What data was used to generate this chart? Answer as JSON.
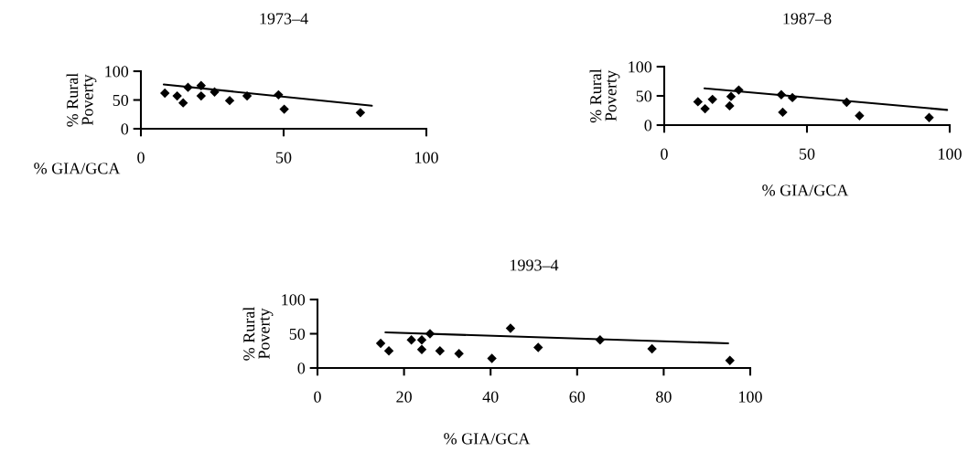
{
  "chart_data": [
    {
      "type": "scatter",
      "title": "1973–4",
      "xlabel": "% GIA/GCA",
      "ylabel": "% Rural\nPoverty",
      "xlim": [
        0,
        100
      ],
      "ylim": [
        0,
        100
      ],
      "xticks": [
        0,
        50,
        100
      ],
      "yticks": [
        0,
        50,
        100
      ],
      "grid": false,
      "legend": false,
      "series": [
        {
          "type": "scatter",
          "color": "#000000",
          "marker": "diamond",
          "x": [
            8.4,
            12.7,
            14.8,
            16.5,
            21.1,
            21.1,
            25.8,
            31.1,
            37.2,
            48.2,
            50.2,
            76.9
          ],
          "values": [
            62,
            57,
            45,
            72,
            75,
            57,
            64,
            49,
            57,
            59,
            34,
            28
          ]
        },
        {
          "type": "line",
          "color": "#000000",
          "marker": "none",
          "x": [
            8,
            80.9
          ],
          "values": [
            77,
            40
          ]
        }
      ]
    },
    {
      "type": "scatter",
      "title": "1987–8",
      "xlabel": "% GIA/GCA",
      "ylabel": "% Rural\nPoverty",
      "xlim": [
        0,
        100
      ],
      "ylim": [
        0,
        100
      ],
      "xticks": [
        0,
        50,
        100
      ],
      "yticks": [
        0,
        50,
        100
      ],
      "grid": false,
      "legend": false,
      "series": [
        {
          "type": "scatter",
          "color": "#000000",
          "marker": "diamond",
          "x": [
            11.8,
            14.3,
            16.9,
            22.9,
            23.4,
            26.1,
            41,
            41.5,
            44.9,
            63.9,
            68.4,
            92.8
          ],
          "values": [
            40,
            28,
            44,
            33,
            49,
            60,
            52,
            22,
            47,
            39,
            16,
            13
          ]
        },
        {
          "type": "line",
          "color": "#000000",
          "marker": "none",
          "x": [
            14.1,
            99.1
          ],
          "values": [
            63,
            26
          ]
        }
      ]
    },
    {
      "type": "scatter",
      "title": "1993–4",
      "xlabel": "% GIA/GCA",
      "ylabel": "% Rural\nPoverty",
      "xlim": [
        0,
        100
      ],
      "ylim": [
        0,
        100
      ],
      "xticks": [
        0,
        20,
        40,
        60,
        80,
        100
      ],
      "yticks": [
        0,
        50,
        100
      ],
      "grid": false,
      "legend": false,
      "series": [
        {
          "type": "scatter",
          "color": "#000000",
          "marker": "diamond",
          "x": [
            14.6,
            16.5,
            21.7,
            24.1,
            24.1,
            26,
            28.3,
            32.7,
            40.3,
            44.6,
            51,
            65.3,
            77.3,
            95.3
          ],
          "values": [
            36,
            25,
            41,
            41,
            27,
            50,
            25,
            21,
            14,
            58,
            30,
            41,
            28,
            11
          ]
        },
        {
          "type": "line",
          "color": "#000000",
          "marker": "none",
          "x": [
            15.7,
            94.9
          ],
          "values": [
            52,
            36
          ]
        }
      ]
    }
  ]
}
